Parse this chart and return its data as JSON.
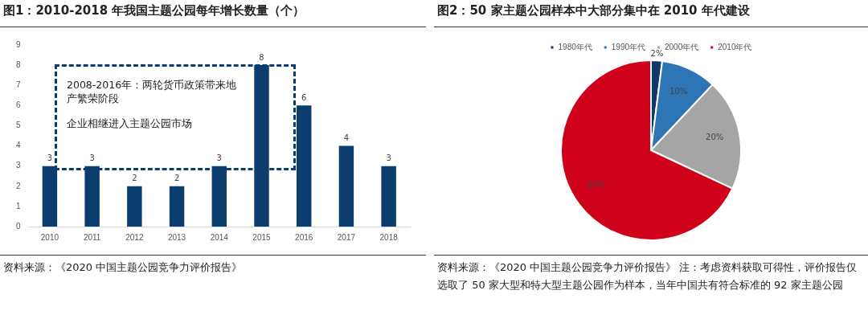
{
  "chart_data": [
    {
      "type": "bar",
      "title": "图1：2010-2018 年我国主题公园每年增长数量（个）",
      "categories": [
        "2010",
        "2011",
        "2012",
        "2013",
        "2014",
        "2015",
        "2016",
        "2017",
        "2018"
      ],
      "values": [
        3,
        3,
        2,
        2,
        3,
        8,
        6,
        4,
        3
      ],
      "color": "#0b3d6f",
      "ylim": [
        0,
        9
      ],
      "yticks": [
        0,
        1,
        2,
        3,
        4,
        5,
        6,
        7,
        8,
        9
      ],
      "grid": false,
      "legend": false,
      "data_labels": true,
      "annotations": [
        "2008-2016年：两轮货币政策带来地产繁荣阶段",
        "企业相继进入主题公园市场",
        "资料来源：《2020 中国主题公园竞争力评价报告》"
      ]
    },
    {
      "type": "pie",
      "title": "图2：50 家主题公园样本中大部分集中在 2010 年代建设",
      "categories": [
        "1980年代",
        "1990年代",
        "2000年代",
        "2010年代"
      ],
      "values": [
        2,
        10,
        20,
        68
      ],
      "colors": [
        "#0d3a6b",
        "#2e75b6",
        "#a5a5a5",
        "#d0021b"
      ],
      "legend": "top",
      "value_labels": [
        "2%",
        "10%",
        "20%",
        "68%"
      ],
      "annotations": [
        "资料来源：《2020 中国主题公园竞争力评价报告》  注：考虑资料获取可得性，评价报告仅选取了 50 家大型和特大型主题公园作为样本，当年中国共有符合标准的 92 家主题公园"
      ]
    }
  ]
}
